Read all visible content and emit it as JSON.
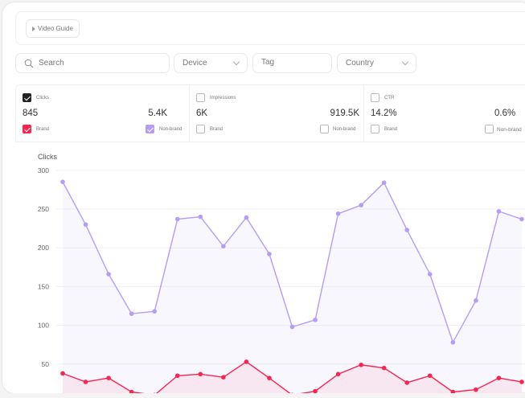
{
  "header": {
    "video_guide_label": "Video Guide",
    "play_icon": "play-icon"
  },
  "filters": {
    "search_placeholder": "Search",
    "device_label": "Device",
    "tag_placeholder": "Tag",
    "country_label": "Country"
  },
  "metrics": [
    {
      "label": "Clicks",
      "checked": true,
      "brand_value": "845",
      "nonbrand_value": "5.4K",
      "brand_label": "Brand",
      "nonbrand_label": "Non-brand",
      "brand_checked": true,
      "nonbrand_checked": true
    },
    {
      "label": "Impressions",
      "checked": false,
      "brand_value": "6K",
      "nonbrand_value": "919.5K",
      "brand_label": "Brand",
      "nonbrand_label": "Non-brand",
      "brand_checked": false,
      "nonbrand_checked": false
    },
    {
      "label": "CTR",
      "checked": false,
      "brand_value": "14.2%",
      "nonbrand_value": "0.6%",
      "brand_label": "Brand",
      "nonbrand_label": "Non-brand",
      "brand_checked": false,
      "nonbrand_checked": false
    }
  ],
  "colors": {
    "brand": "#f5264f",
    "nonbrand": "#b79cf5",
    "checked_dark": "#222222"
  },
  "chart_data": {
    "type": "line",
    "ylabel": "Clicks",
    "ylim": [
      0,
      300
    ],
    "yticks": [
      50,
      100,
      150,
      200,
      250,
      300
    ],
    "grid": true,
    "series": [
      {
        "key": "nonbrand",
        "color": "#b79cf5",
        "values": [
          285,
          230,
          166,
          115,
          118,
          237,
          240,
          202,
          239,
          192,
          98,
          107,
          244,
          255,
          284,
          223,
          166,
          78,
          132,
          247,
          237
        ]
      },
      {
        "key": "brand",
        "color": "#f5264f",
        "values": [
          38,
          27,
          32,
          14,
          10,
          35,
          37,
          33,
          53,
          32,
          10,
          15,
          37,
          49,
          45,
          26,
          35,
          14,
          17,
          32,
          27
        ]
      }
    ]
  }
}
